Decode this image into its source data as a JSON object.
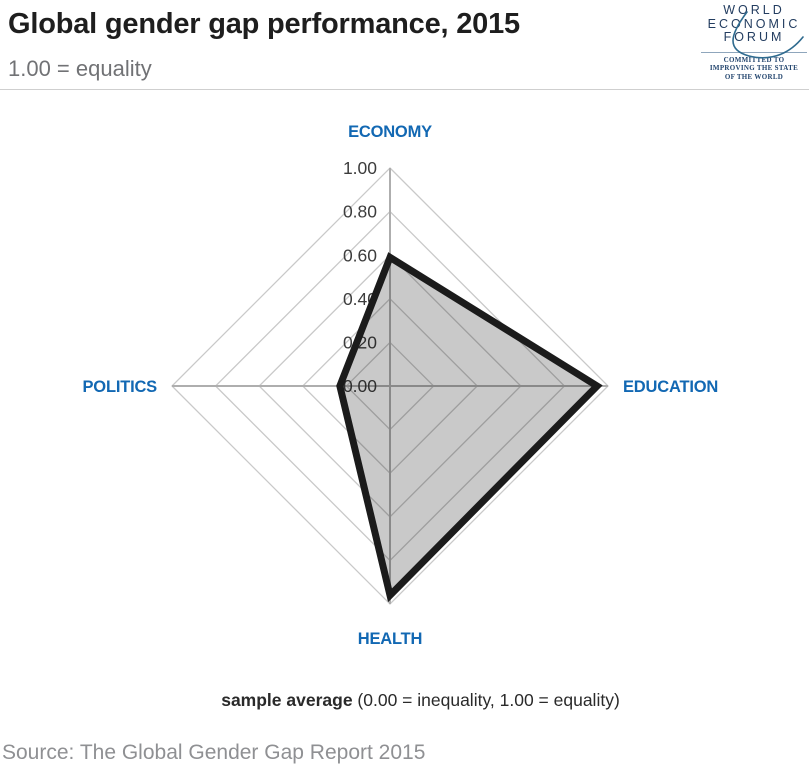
{
  "header": {
    "title": "Global gender gap performance, 2015",
    "subtitle": "1.00 = equality"
  },
  "logo": {
    "lines": [
      "WORLD",
      "ECONOMIC",
      "FORUM"
    ],
    "tagline_lines": [
      "COMMITTED TO",
      "IMPROVING THE STATE",
      "OF THE WORLD"
    ]
  },
  "chart_data": {
    "type": "radar",
    "title": "Global gender gap performance, 2015",
    "axes": [
      "ECONOMY",
      "EDUCATION",
      "HEALTH",
      "POLITICS"
    ],
    "axis_directions": [
      "up",
      "right",
      "down",
      "left"
    ],
    "series": [
      {
        "name": "sample average",
        "values": [
          0.59,
          0.95,
          0.96,
          0.23
        ]
      }
    ],
    "scale": {
      "min": 0.0,
      "max": 1.0,
      "step": 0.2,
      "tick_labels": [
        "1.00",
        "0.80",
        "0.60",
        "0.40",
        "0.20",
        "0.00"
      ],
      "note": "ticks run from 1.00 at outer edge to 0.00 at center along the top axis"
    },
    "grid": true,
    "legend_position": "none",
    "ylim": [
      0,
      1
    ]
  },
  "caption": {
    "bold": "sample average",
    "rest": " (0.00 = inequality, 1.00 = equality)"
  },
  "source": "Source: The Global Gender Gap Report 2015",
  "colors": {
    "accent_blue": "#1268b3",
    "navy_logo": "#233d60",
    "swoosh": "#2f6b8f",
    "tick": "#3c3c3c",
    "grid": "#c9c9c9",
    "axis": "#aeaeae",
    "polygon_stroke": "#1b1b1b",
    "polygon_fill": "rgba(0,0,0,0.21)",
    "title_text": "#1e1e1e",
    "subtitle_text": "#717275",
    "source_text": "#8f9093"
  }
}
